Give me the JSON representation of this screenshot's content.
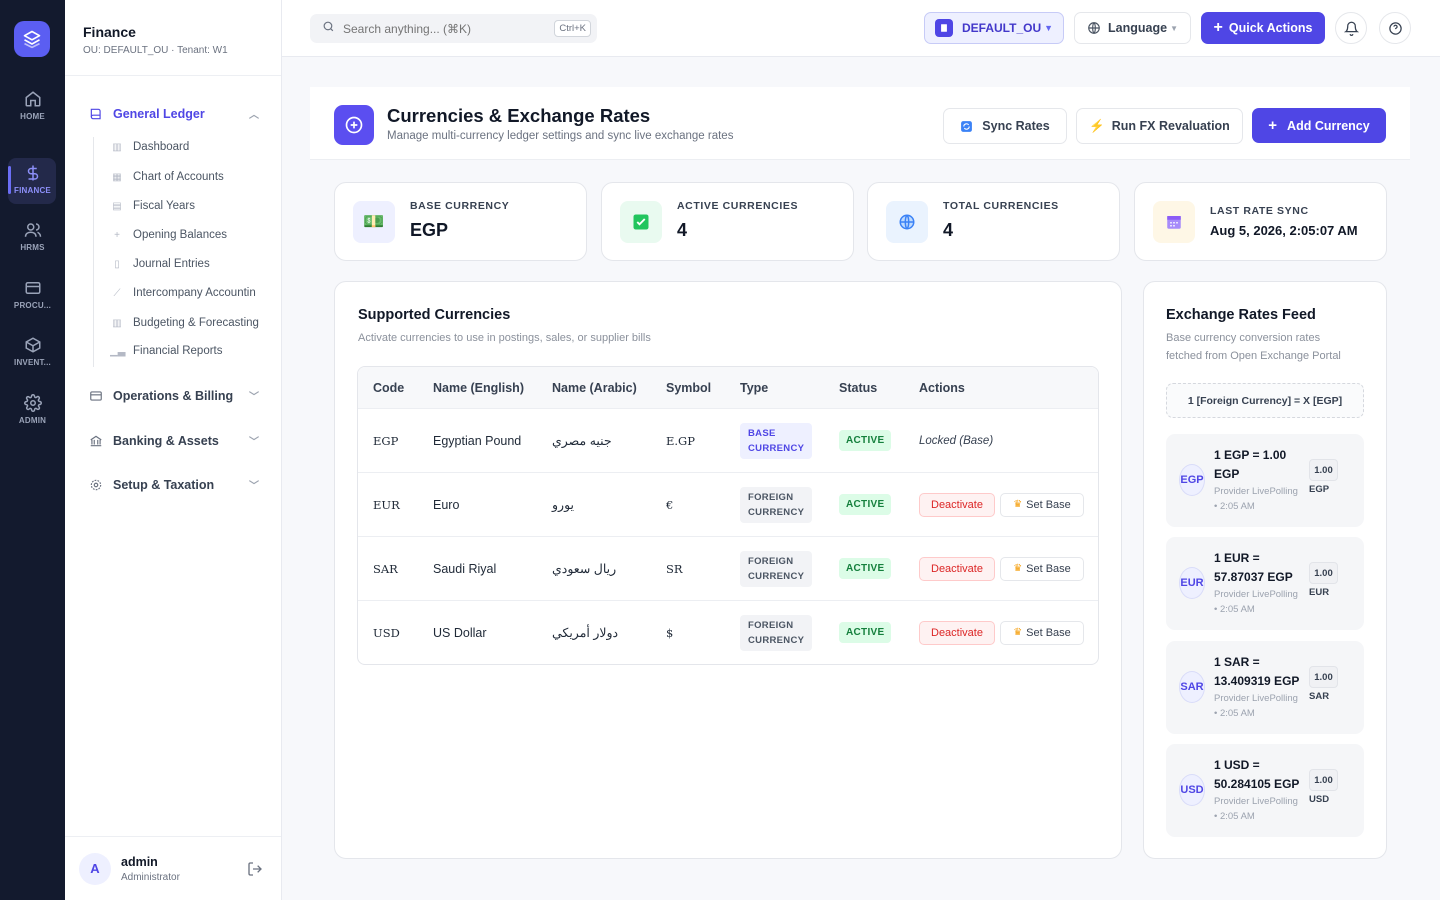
{
  "rail": {
    "items": [
      {
        "label": "HOME",
        "icon": "home-icon"
      },
      {
        "label": "FINANCE",
        "icon": "dollar-icon"
      },
      {
        "label": "HRMS",
        "icon": "users-icon"
      },
      {
        "label": "PROCU...",
        "icon": "card-icon"
      },
      {
        "label": "INVENT...",
        "icon": "box-icon"
      },
      {
        "label": "ADMIN",
        "icon": "gear-icon"
      }
    ]
  },
  "sidebar": {
    "title": "Finance",
    "subtitle": "OU: DEFAULT_OU · Tenant: W1",
    "groups": [
      {
        "label": "General Ledger",
        "icon": "book-icon"
      },
      {
        "label": "Operations & Billing",
        "icon": "wallet-icon"
      },
      {
        "label": "Banking & Assets",
        "icon": "bank-icon"
      },
      {
        "label": "Setup & Taxation",
        "icon": "gear-icon"
      }
    ],
    "gl_items": [
      {
        "label": "Dashboard",
        "icon": "bar-chart-icon"
      },
      {
        "label": "Chart of Accounts",
        "icon": "table-icon"
      },
      {
        "label": "Fiscal Years",
        "icon": "calendar-icon"
      },
      {
        "label": "Opening Balances",
        "icon": "plus-icon"
      },
      {
        "label": "Journal Entries",
        "icon": "document-icon"
      },
      {
        "label": "Intercompany Accountin",
        "icon": "trend-icon"
      },
      {
        "label": "Budgeting & Forecasting",
        "icon": "budget-icon"
      },
      {
        "label": "Financial Reports",
        "icon": "bar-chart-icon"
      }
    ],
    "user": {
      "initial": "A",
      "name": "admin",
      "role": "Administrator"
    }
  },
  "topbar": {
    "search_placeholder": "Search anything... (⌘K)",
    "search_shortcut": "Ctrl+K",
    "ou_label": "DEFAULT_OU",
    "language_label": "Language",
    "quick_actions_label": "Quick Actions"
  },
  "header": {
    "title": "Currencies & Exchange Rates",
    "subtitle": "Manage multi-currency ledger settings and sync live exchange rates",
    "sync_label": "Sync Rates",
    "reval_label": "Run FX Revaluation",
    "add_label": "Add Currency"
  },
  "stats": [
    {
      "label": "BASE CURRENCY",
      "value": "EGP",
      "icon": "money-icon"
    },
    {
      "label": "ACTIVE CURRENCIES",
      "value": "4",
      "icon": "check-icon"
    },
    {
      "label": "TOTAL CURRENCIES",
      "value": "4",
      "icon": "globe-icon"
    },
    {
      "label": "LAST RATE SYNC",
      "value": "Aug 5, 2026, 2:05:07 AM",
      "icon": "calendar-icon"
    }
  ],
  "currencies": {
    "title": "Supported Currencies",
    "subtitle": "Activate currencies to use in postings, sales, or supplier bills",
    "columns": [
      "Code",
      "Name (English)",
      "Name (Arabic)",
      "Symbol",
      "Type",
      "Status",
      "Actions"
    ],
    "rows": [
      {
        "code": "EGP",
        "name_en": "Egyptian Pound",
        "name_ar": "جنيه مصري",
        "symbol": "E.GP",
        "type_line1": "BASE",
        "type_line2": "CURRENCY",
        "status": "ACTIVE",
        "locked": "Locked (Base)"
      },
      {
        "code": "EUR",
        "name_en": "Euro",
        "name_ar": "يورو",
        "symbol": "€",
        "type_line1": "FOREIGN",
        "type_line2": "CURRENCY",
        "status": "ACTIVE",
        "deactivate": "Deactivate",
        "set_base": "Set Base"
      },
      {
        "code": "SAR",
        "name_en": "Saudi Riyal",
        "name_ar": "ريال سعودي",
        "symbol": "SR",
        "type_line1": "FOREIGN",
        "type_line2": "CURRENCY",
        "status": "ACTIVE",
        "deactivate": "Deactivate",
        "set_base": "Set Base"
      },
      {
        "code": "USD",
        "name_en": "US Dollar",
        "name_ar": "دولار أمريكي",
        "symbol": "$",
        "type_line1": "FOREIGN",
        "type_line2": "CURRENCY",
        "status": "ACTIVE",
        "deactivate": "Deactivate",
        "set_base": "Set Base"
      }
    ]
  },
  "feed": {
    "title": "Exchange Rates Feed",
    "subtitle_line1": "Base currency conversion rates",
    "subtitle_line2": "fetched from Open Exchange Portal",
    "formula": "1 [Foreign Currency] = X [EGP]",
    "items": [
      {
        "code": "EGP",
        "line1": "1 EGP = 1.00",
        "line2": "EGP",
        "provider": "Provider LivePolling",
        "time": "• 2:05 AM",
        "rate": "1.00",
        "ccy": "EGP"
      },
      {
        "code": "EUR",
        "line1": "1 EUR =",
        "line2": "57.87037 EGP",
        "provider": "Provider LivePolling",
        "time": "• 2:05 AM",
        "rate": "1.00",
        "ccy": "EUR"
      },
      {
        "code": "SAR",
        "line1": "1 SAR =",
        "line2": "13.409319 EGP",
        "provider": "Provider LivePolling",
        "time": "• 2:05 AM",
        "rate": "1.00",
        "ccy": "SAR"
      },
      {
        "code": "USD",
        "line1": "1 USD =",
        "line2": "50.284105 EGP",
        "provider": "Provider LivePolling",
        "time": "• 2:05 AM",
        "rate": "1.00",
        "ccy": "USD"
      }
    ]
  },
  "colors": {
    "accent": "#4f46e5",
    "rail_bg": "#131a2e",
    "active_green": "#15803d",
    "danger": "#dc2626"
  }
}
